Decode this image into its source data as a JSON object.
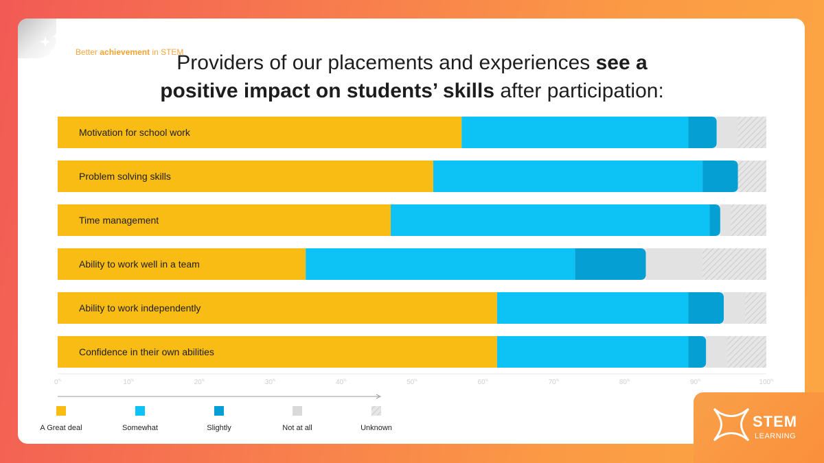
{
  "tagline": {
    "prefix": "Better ",
    "highlight": "achievement",
    "suffix": " in STEM"
  },
  "title": {
    "line1_a": "Providers of our placements and experiences ",
    "line1_b": "see a",
    "line2_a": "positive impact on students’ skills",
    "line2_b": " after participation:"
  },
  "chart_data": {
    "type": "bar",
    "orientation": "horizontal",
    "stacked": true,
    "categories": [
      "Motivation for school work",
      "Problem solving skills",
      "Time management",
      "Ability to work well in a team",
      "Ability to work independently",
      "Confidence in their own abilities"
    ],
    "series": [
      {
        "name": "A Great deal",
        "color": "#f9bc15",
        "values": [
          57,
          53,
          47,
          35,
          62,
          62
        ]
      },
      {
        "name": "Somewhat",
        "color": "#0dc3f6",
        "values": [
          32,
          38,
          45,
          38,
          27,
          27
        ]
      },
      {
        "name": "Slightly",
        "color": "#069fd4",
        "values": [
          4,
          5,
          1.5,
          10,
          5,
          2.5
        ]
      },
      {
        "name": "Not at all",
        "color": "#e2e2e2",
        "values": [
          3,
          0,
          1.5,
          8,
          3,
          3
        ]
      },
      {
        "name": "Unknown",
        "color": "#e2e2e2",
        "pattern": "hatch",
        "values": [
          4,
          4,
          5,
          9,
          3,
          5.5
        ]
      }
    ],
    "x_ticks": [
      {
        "value": 0,
        "label": "0"
      },
      {
        "value": 10,
        "label": "10"
      },
      {
        "value": 20,
        "label": "20"
      },
      {
        "value": 30,
        "label": "30"
      },
      {
        "value": 40,
        "label": "40"
      },
      {
        "value": 50,
        "label": "50"
      },
      {
        "value": 60,
        "label": "60"
      },
      {
        "value": 70,
        "label": "70"
      },
      {
        "value": 80,
        "label": "80"
      },
      {
        "value": 90,
        "label": "90"
      },
      {
        "value": 100,
        "label": "100"
      }
    ],
    "tick_suffix": "%",
    "xlim": [
      0,
      100
    ],
    "legend_position": "bottom-left"
  },
  "logo": {
    "name": "STEM",
    "sub": "LEARNING"
  }
}
